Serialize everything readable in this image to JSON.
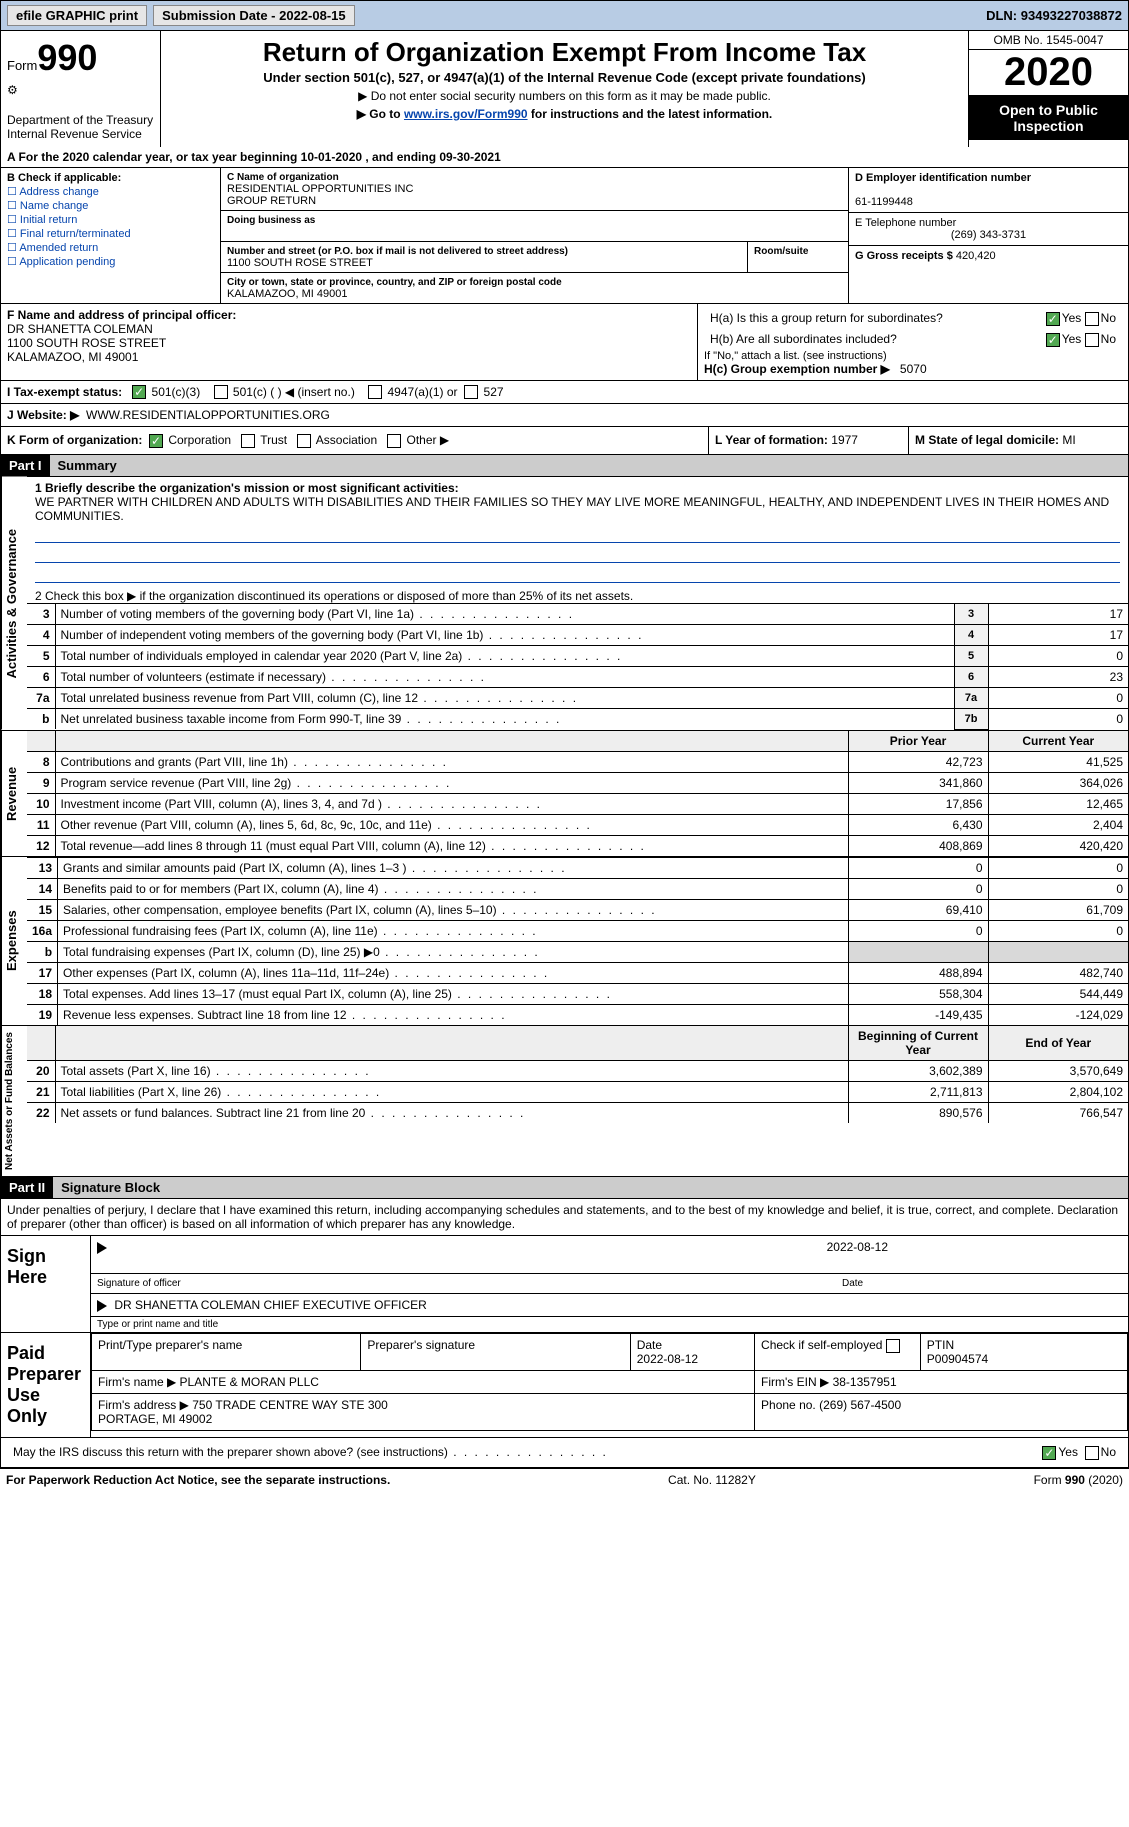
{
  "topbar": {
    "efile": "efile GRAPHIC print",
    "submission_label": "Submission Date - ",
    "submission_date": "2022-08-15",
    "dln_label": "DLN: ",
    "dln": "93493227038872"
  },
  "header": {
    "form_word": "Form",
    "form_number": "990",
    "dept": "Department of the Treasury\nInternal Revenue Service",
    "title": "Return of Organization Exempt From Income Tax",
    "subtitle": "Under section 501(c), 527, or 4947(a)(1) of the Internal Revenue Code (except private foundations)",
    "note1": "▶ Do not enter social security numbers on this form as it may be made public.",
    "note2_pre": "▶ Go to ",
    "note2_link": "www.irs.gov/Form990",
    "note2_post": " for instructions and the latest information.",
    "omb": "OMB No. 1545-0047",
    "tax_year": "2020",
    "inspect": "Open to Public Inspection"
  },
  "yearline": "A For the 2020 calendar year, or tax year beginning 10-01-2020   , and ending 09-30-2021",
  "boxB": {
    "heading": "B Check if applicable:",
    "items": [
      "Address change",
      "Name change",
      "Initial return",
      "Final return/terminated",
      "Amended return",
      "Application pending"
    ]
  },
  "boxC": {
    "name_lbl": "C Name of organization",
    "name": "RESIDENTIAL OPPORTUNITIES INC\nGROUP RETURN",
    "dba_lbl": "Doing business as",
    "dba": "",
    "street_lbl": "Number and street (or P.O. box if mail is not delivered to street address)",
    "room_lbl": "Room/suite",
    "street": "1100 SOUTH ROSE STREET",
    "city_lbl": "City or town, state or province, country, and ZIP or foreign postal code",
    "city": "KALAMAZOO, MI  49001"
  },
  "boxD": {
    "lbl": "D Employer identification number",
    "val": "61-1199448"
  },
  "boxE": {
    "lbl": "E Telephone number",
    "val": "(269) 343-3731"
  },
  "boxG": {
    "lbl": "G Gross receipts $",
    "val": "420,420"
  },
  "boxF": {
    "lbl": "F  Name and address of principal officer:",
    "name": "DR SHANETTA COLEMAN",
    "street": "1100 SOUTH ROSE STREET",
    "city": "KALAMAZOO, MI  49001"
  },
  "boxH": {
    "a_lbl": "H(a)  Is this a group return for subordinates?",
    "b_lbl": "H(b)  Are all subordinates included?",
    "note": "If \"No,\" attach a list. (see instructions)",
    "c_lbl": "H(c)  Group exemption number ▶",
    "c_val": "5070",
    "yes": "Yes",
    "no": "No"
  },
  "boxI": {
    "lbl": "I   Tax-exempt status:",
    "opts": [
      "501(c)(3)",
      "501(c) (   ) ◀ (insert no.)",
      "4947(a)(1) or",
      "527"
    ]
  },
  "boxJ": {
    "lbl": "J   Website: ▶",
    "val": "WWW.RESIDENTIALOPPORTUNITIES.ORG"
  },
  "boxK": {
    "lbl": "K Form of organization:",
    "opts": [
      "Corporation",
      "Trust",
      "Association",
      "Other ▶"
    ]
  },
  "boxL": {
    "lbl": "L Year of formation:",
    "val": "1977"
  },
  "boxM": {
    "lbl": "M State of legal domicile:",
    "val": "MI"
  },
  "part1": {
    "hdr": "Part I",
    "title": "Summary",
    "mission_lbl": "1  Briefly describe the organization's mission or most significant activities:",
    "mission": "WE PARTNER WITH CHILDREN AND ADULTS WITH DISABILITIES AND THEIR FAMILIES SO THEY MAY LIVE MORE MEANINGFUL, HEALTHY, AND INDEPENDENT LIVES IN THEIR HOMES AND COMMUNITIES.",
    "check_lbl": "2   Check this box ▶        if the organization discontinued its operations or disposed of more than 25% of its net assets.",
    "col_prior": "Prior Year",
    "col_current": "Current Year",
    "col_boy": "Beginning of Current Year",
    "col_eoy": "End of Year"
  },
  "gov_lines": [
    {
      "n": "3",
      "t": "Number of voting members of the governing body (Part VI, line 1a)",
      "box": "3",
      "v": "17"
    },
    {
      "n": "4",
      "t": "Number of independent voting members of the governing body (Part VI, line 1b)",
      "box": "4",
      "v": "17"
    },
    {
      "n": "5",
      "t": "Total number of individuals employed in calendar year 2020 (Part V, line 2a)",
      "box": "5",
      "v": "0"
    },
    {
      "n": "6",
      "t": "Total number of volunteers (estimate if necessary)",
      "box": "6",
      "v": "23"
    },
    {
      "n": "7a",
      "t": "Total unrelated business revenue from Part VIII, column (C), line 12",
      "box": "7a",
      "v": "0"
    },
    {
      "n": "b",
      "t": "Net unrelated business taxable income from Form 990-T, line 39",
      "box": "7b",
      "v": "0"
    }
  ],
  "rev_lines": [
    {
      "n": "8",
      "t": "Contributions and grants (Part VIII, line 1h)",
      "py": "42,723",
      "cy": "41,525"
    },
    {
      "n": "9",
      "t": "Program service revenue (Part VIII, line 2g)",
      "py": "341,860",
      "cy": "364,026"
    },
    {
      "n": "10",
      "t": "Investment income (Part VIII, column (A), lines 3, 4, and 7d )",
      "py": "17,856",
      "cy": "12,465"
    },
    {
      "n": "11",
      "t": "Other revenue (Part VIII, column (A), lines 5, 6d, 8c, 9c, 10c, and 11e)",
      "py": "6,430",
      "cy": "2,404"
    },
    {
      "n": "12",
      "t": "Total revenue—add lines 8 through 11 (must equal Part VIII, column (A), line 12)",
      "py": "408,869",
      "cy": "420,420"
    }
  ],
  "exp_lines": [
    {
      "n": "13",
      "t": "Grants and similar amounts paid (Part IX, column (A), lines 1–3 )",
      "py": "0",
      "cy": "0"
    },
    {
      "n": "14",
      "t": "Benefits paid to or for members (Part IX, column (A), line 4)",
      "py": "0",
      "cy": "0"
    },
    {
      "n": "15",
      "t": "Salaries, other compensation, employee benefits (Part IX, column (A), lines 5–10)",
      "py": "69,410",
      "cy": "61,709"
    },
    {
      "n": "16a",
      "t": "Professional fundraising fees (Part IX, column (A), line 11e)",
      "py": "0",
      "cy": "0"
    },
    {
      "n": "b",
      "t": "Total fundraising expenses (Part IX, column (D), line 25) ▶0",
      "py": "",
      "cy": "",
      "shade": true
    },
    {
      "n": "17",
      "t": "Other expenses (Part IX, column (A), lines 11a–11d, 11f–24e)",
      "py": "488,894",
      "cy": "482,740"
    },
    {
      "n": "18",
      "t": "Total expenses. Add lines 13–17 (must equal Part IX, column (A), line 25)",
      "py": "558,304",
      "cy": "544,449"
    },
    {
      "n": "19",
      "t": "Revenue less expenses. Subtract line 18 from line 12",
      "py": "-149,435",
      "cy": "-124,029"
    }
  ],
  "na_lines": [
    {
      "n": "20",
      "t": "Total assets (Part X, line 16)",
      "py": "3,602,389",
      "cy": "3,570,649"
    },
    {
      "n": "21",
      "t": "Total liabilities (Part X, line 26)",
      "py": "2,711,813",
      "cy": "2,804,102"
    },
    {
      "n": "22",
      "t": "Net assets or fund balances. Subtract line 21 from line 20",
      "py": "890,576",
      "cy": "766,547"
    }
  ],
  "vtabs": {
    "gov": "Activities & Governance",
    "rev": "Revenue",
    "exp": "Expenses",
    "na": "Net Assets or Fund Balances"
  },
  "part2": {
    "hdr": "Part II",
    "title": "Signature Block",
    "decl": "Under penalties of perjury, I declare that I have examined this return, including accompanying schedules and statements, and to the best of my knowledge and belief, it is true, correct, and complete. Declaration of preparer (other than officer) is based on all information of which preparer has any knowledge."
  },
  "sign": {
    "here": "Sign Here",
    "sig_lbl": "Signature of officer",
    "date_lbl": "Date",
    "date": "2022-08-12",
    "name": "DR SHANETTA COLEMAN  CHIEF EXECUTIVE OFFICER",
    "name_lbl": "Type or print name and title"
  },
  "paid": {
    "title": "Paid Preparer Use Only",
    "cols": [
      "Print/Type preparer's name",
      "Preparer's signature",
      "Date",
      "Check        if self-employed",
      "PTIN"
    ],
    "date": "2022-08-12",
    "ptin": "P00904574",
    "firm_name_lbl": "Firm's name    ▶",
    "firm_name": "PLANTE & MORAN PLLC",
    "firm_ein_lbl": "Firm's EIN ▶",
    "firm_ein": "38-1357951",
    "firm_addr_lbl": "Firm's address ▶",
    "firm_addr": "750 TRADE CENTRE WAY STE 300\nPORTAGE, MI  49002",
    "phone_lbl": "Phone no.",
    "phone": "(269) 567-4500"
  },
  "discuss": {
    "q": "May the IRS discuss this return with the preparer shown above? (see instructions)",
    "yes": "Yes",
    "no": "No"
  },
  "footer": {
    "left": "For Paperwork Reduction Act Notice, see the separate instructions.",
    "mid": "Cat. No. 11282Y",
    "right": "Form 990 (2020)"
  },
  "colors": {
    "topbar_bg": "#b8cce4",
    "link": "#0645ad",
    "check_green": "#52a852"
  }
}
